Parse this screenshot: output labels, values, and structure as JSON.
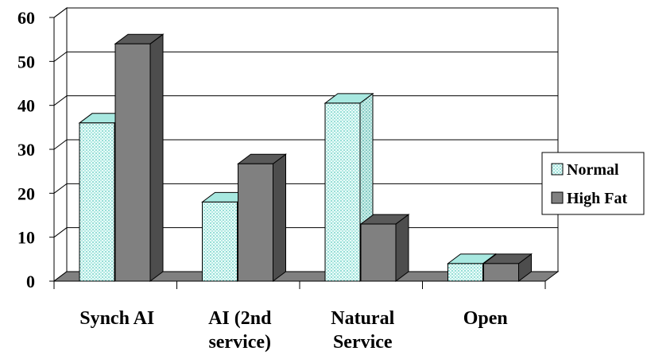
{
  "chart_data": {
    "type": "bar",
    "title": "",
    "xlabel": "",
    "ylabel": "",
    "categories": [
      [
        "Synch AI"
      ],
      [
        "AI (2nd",
        "service)"
      ],
      [
        "Natural",
        "Service"
      ],
      [
        "Open"
      ]
    ],
    "series": [
      {
        "name": "Normal",
        "values": [
          36,
          18,
          40.5,
          4
        ],
        "color": "#e6fbf8",
        "pattern": "dots-teal"
      },
      {
        "name": "High Fat",
        "values": [
          54,
          26.7,
          13,
          4
        ],
        "color": "#808080",
        "pattern": "solid"
      }
    ],
    "ylim": [
      0,
      60
    ],
    "yticks": [
      0,
      10,
      20,
      30,
      40,
      50,
      60
    ],
    "grid": true,
    "legend_position": "right",
    "style": "3d-clustered-column"
  }
}
